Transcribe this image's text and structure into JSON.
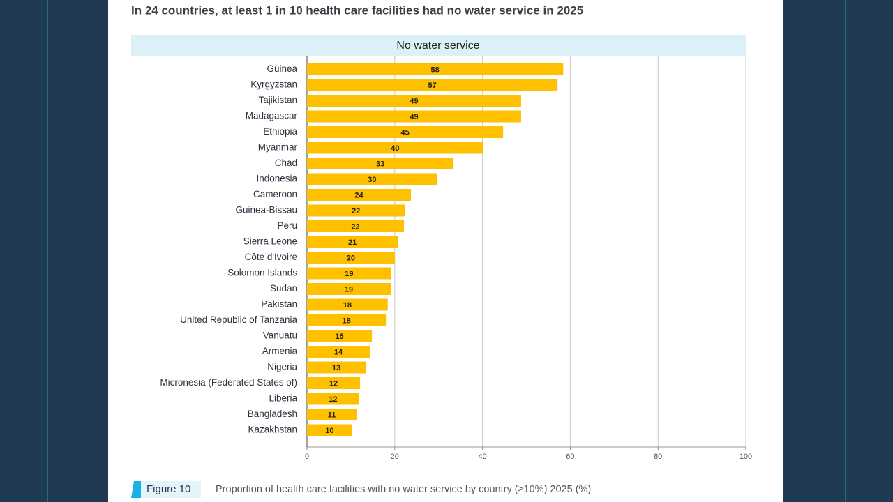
{
  "chart_data": {
    "type": "bar",
    "orientation": "horizontal",
    "title": "In 24 countries, at least 1 in 10 health care facilities had no water service in 2025",
    "subtitle": "No water service",
    "categories": [
      "Guinea",
      "Kyrgyzstan",
      "Tajikistan",
      "Madagascar",
      "Ethiopia",
      "Myanmar",
      "Chad",
      "Indonesia",
      "Cameroon",
      "Guinea-Bissau",
      "Peru",
      "Sierra Leone",
      "Côte d'Ivoire",
      "Solomon Islands",
      "Sudan",
      "Pakistan",
      "United Republic of Tanzania",
      "Vanuatu",
      "Armenia",
      "Nigeria",
      "Micronesia (Federated States of)",
      "Liberia",
      "Bangladesh",
      "Kazakhstan"
    ],
    "values": [
      58.4,
      57.1,
      48.8,
      48.8,
      44.7,
      40.2,
      33.4,
      29.7,
      23.7,
      22.3,
      22.1,
      20.7,
      20.0,
      19.2,
      19.1,
      18.4,
      18.0,
      14.8,
      14.3,
      13.4,
      12.1,
      11.9,
      11.3,
      10.3
    ],
    "value_labels": [
      "58",
      "57",
      "49",
      "49",
      "45",
      "40",
      "33",
      "30",
      "24",
      "22",
      "22",
      "21",
      "20",
      "19",
      "19",
      "18",
      "18",
      "15",
      "14",
      "13",
      "12",
      "12",
      "11",
      "10"
    ],
    "color": "#ffc000",
    "xlim": [
      0,
      100
    ],
    "xticks": [
      0,
      20,
      40,
      60,
      80,
      100
    ],
    "grid": true
  },
  "figure": {
    "label": "Figure 10",
    "caption": "Proportion of health care facilities with no water service by country (≥10%) 2025 (%)"
  }
}
